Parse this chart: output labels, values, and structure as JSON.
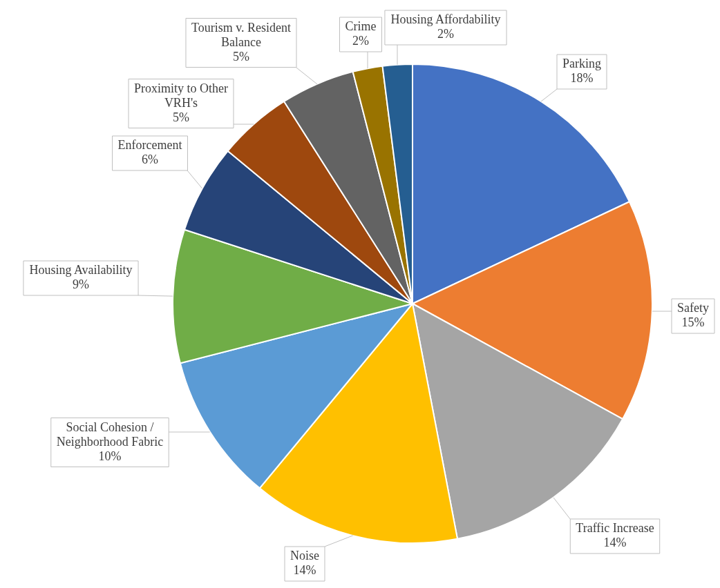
{
  "chart_data": {
    "type": "pie",
    "categories": [
      "Parking",
      "Safety",
      "Traffic Increase",
      "Noise",
      "Social Cohesion / Neighborhood Fabric",
      "Housing Availability",
      "Enforcement",
      "Proximity to Other VRH's",
      "Tourism v. Resident Balance",
      "Crime",
      "Housing Affordability"
    ],
    "values": [
      18,
      15,
      14,
      14,
      10,
      9,
      6,
      5,
      5,
      2,
      2
    ],
    "value_labels": [
      "18%",
      "15%",
      "14%",
      "14%",
      "10%",
      "9%",
      "6%",
      "5%",
      "5%",
      "2%",
      "2%"
    ],
    "colors": [
      "#4472c4",
      "#ed7d31",
      "#a5a5a5",
      "#ffc000",
      "#5b9bd5",
      "#70ad47",
      "#264478",
      "#9e480e",
      "#636363",
      "#997300",
      "#255e91"
    ],
    "legend": false
  }
}
